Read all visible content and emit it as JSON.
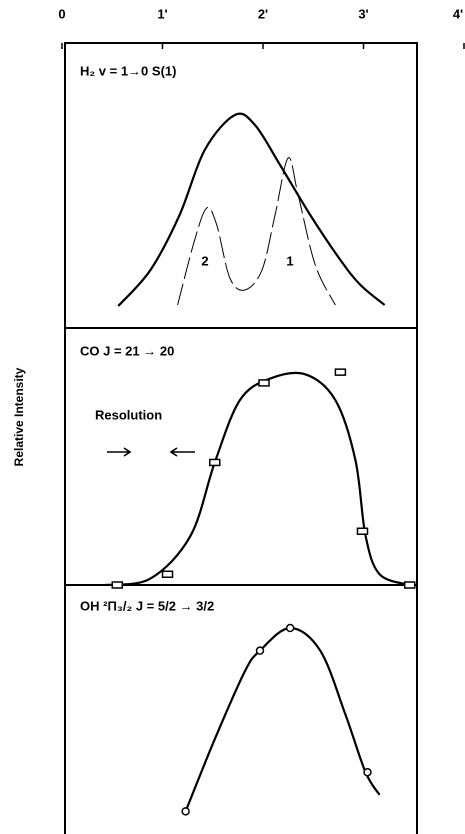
{
  "chart_data": [
    {
      "type": "line",
      "title": "H₂ v = 1→0 S(1)",
      "xlim": [
        0,
        4
      ],
      "xticks": [
        0,
        {
          "value": 1,
          "label": "1'"
        },
        {
          "value": 2,
          "label": "2'"
        },
        {
          "value": 3,
          "label": "3'"
        },
        {
          "value": 4,
          "label": "4'"
        }
      ],
      "ylim": [
        0,
        1
      ],
      "annotations": [
        "2",
        "1"
      ],
      "series": [
        {
          "color": "#000000",
          "style": "solid",
          "x": [
            0.56,
            0.88,
            1.17,
            1.42,
            1.72,
            1.92,
            2.17,
            2.47,
            2.77,
            2.97,
            3.21
          ],
          "values": [
            0.02,
            0.2,
            0.475,
            0.8,
            0.975,
            0.925,
            0.725,
            0.475,
            0.25,
            0.125,
            0.025
          ]
        },
        {
          "color": "#000000",
          "style": "dashed",
          "x": [
            1.15,
            1.32,
            1.44,
            1.54,
            1.67,
            1.82,
            1.99,
            2.12,
            2.25,
            2.35,
            2.52,
            2.72
          ],
          "values": [
            0.025,
            0.35,
            0.51,
            0.425,
            0.16,
            0.1,
            0.2,
            0.475,
            0.76,
            0.575,
            0.225,
            0.025
          ]
        }
      ]
    },
    {
      "type": "line",
      "title": "CO J = 21 → 20",
      "ylabel": "Relative Intensity",
      "ylim": [
        0,
        1
      ],
      "annotations": [
        "Resolution"
      ],
      "series": [
        {
          "color": "#000000",
          "style": "solid",
          "x": [
            0.43,
            0.88,
            1.28,
            1.52,
            1.77,
            2.07,
            2.42,
            2.72,
            2.92,
            3.02,
            3.16,
            3.46
          ],
          "values": [
            0,
            0.03,
            0.23,
            0.57,
            0.86,
            0.96,
            0.98,
            0.86,
            0.58,
            0.23,
            0.05,
            0
          ]
        },
        {
          "color": "#000000",
          "style": "markers",
          "marker": "square",
          "x": [
            0.55,
            1.05,
            1.52,
            2.01,
            2.77,
            2.99,
            3.46
          ],
          "values": [
            0,
            0.05,
            0.57,
            0.94,
            0.99,
            0.25,
            0
          ]
        }
      ]
    },
    {
      "type": "line",
      "title": "OH ²Π₃/₂ J = 5/2 → 3/2",
      "ylim": [
        0,
        1
      ],
      "series": [
        {
          "color": "#000000",
          "style": "solid",
          "x": [
            1.23,
            1.52,
            1.82,
            1.97,
            2.27,
            2.57,
            2.82,
            3.02,
            3.16
          ],
          "values": [
            0.11,
            0.46,
            0.79,
            0.89,
            1,
            0.89,
            0.58,
            0.3,
            0.19
          ]
        },
        {
          "color": "#000000",
          "style": "markers",
          "marker": "circle",
          "x": [
            1.23,
            1.97,
            2.27,
            3.04
          ],
          "values": [
            0.11,
            0.89,
            1,
            0.3
          ]
        }
      ]
    }
  ]
}
